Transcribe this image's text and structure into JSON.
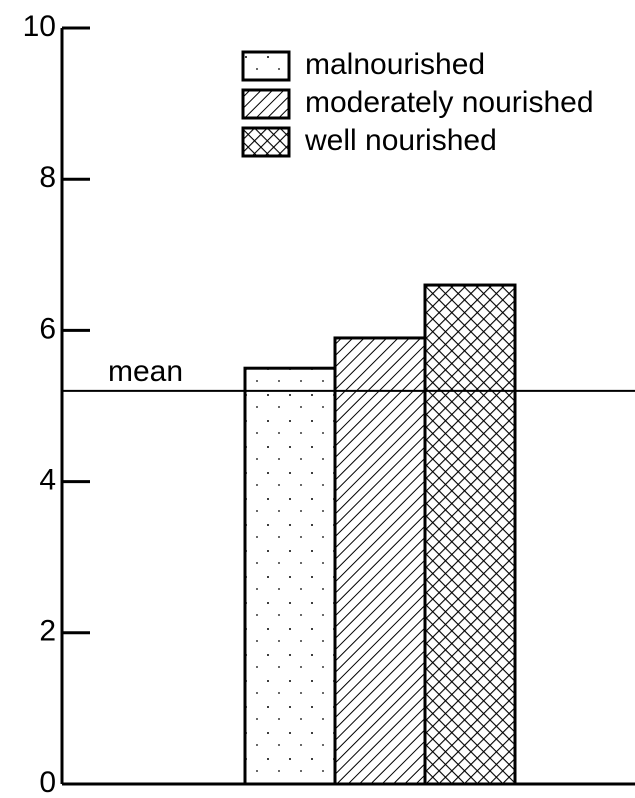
{
  "chart_data": {
    "type": "bar",
    "categories": [
      null
    ],
    "series": [
      {
        "name": "malnourished",
        "color": "#000000",
        "pattern": "dots",
        "values": [
          5.5
        ]
      },
      {
        "name": "moderately nourished",
        "color": "#000000",
        "pattern": "hatch",
        "values": [
          5.9
        ]
      },
      {
        "name": "well nourished",
        "color": "#000000",
        "pattern": "crosshatch",
        "values": [
          6.6
        ]
      }
    ],
    "mean": {
      "label": "mean",
      "value": 5.2
    },
    "ylim": [
      0,
      10
    ],
    "yticks": [
      0,
      2,
      4,
      6,
      8,
      10
    ],
    "legend": "top-right"
  }
}
